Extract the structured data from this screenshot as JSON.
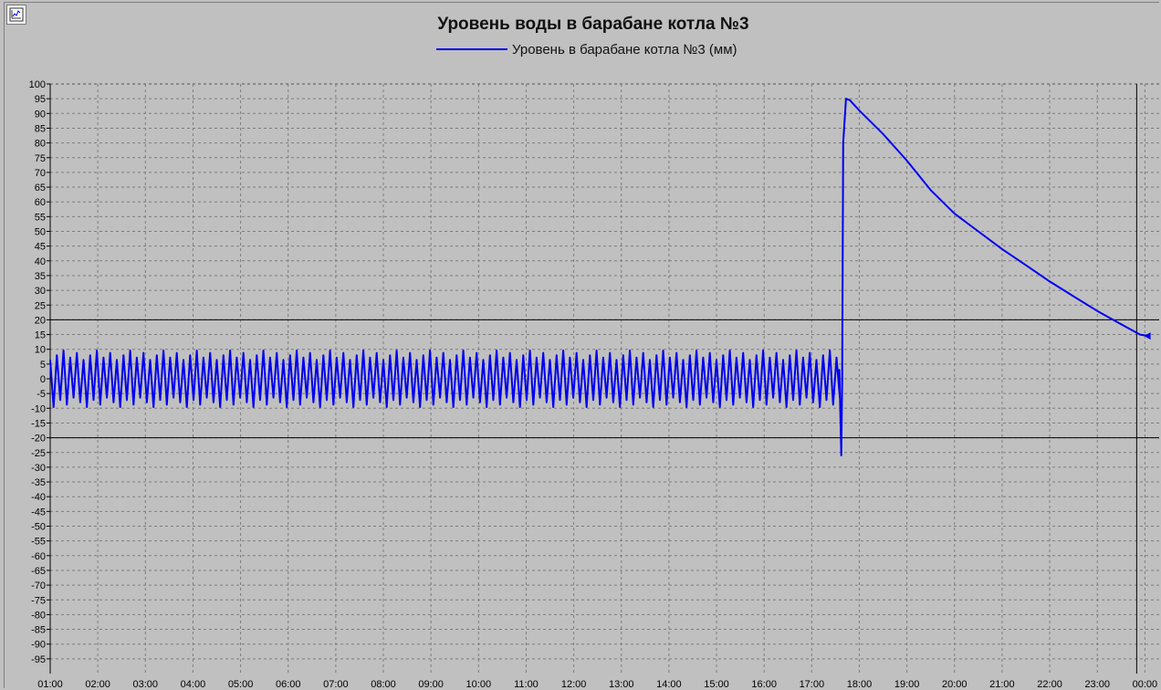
{
  "toolbar": {
    "settings_icon": "chart-settings-icon"
  },
  "chart_data": {
    "type": "line",
    "title": "Уровень воды в барабане котла №3",
    "xlabel": "",
    "ylabel": "",
    "ylim": [
      -100,
      100
    ],
    "y_ticks": [
      100,
      95,
      90,
      85,
      80,
      75,
      70,
      65,
      60,
      55,
      50,
      45,
      40,
      35,
      30,
      25,
      20,
      15,
      10,
      5,
      0,
      -5,
      -10,
      -15,
      -20,
      -25,
      -30,
      -35,
      -40,
      -45,
      -50,
      -55,
      -60,
      -65,
      -70,
      -75,
      -80,
      -85,
      -90,
      -95
    ],
    "x_ticks": [
      "01:00",
      "02:00",
      "03:00",
      "04:00",
      "05:00",
      "06:00",
      "07:00",
      "08:00",
      "09:00",
      "10:00",
      "11:00",
      "12:00",
      "13:00",
      "14:00",
      "15:00",
      "16:00",
      "17:00",
      "18:00",
      "19:00",
      "20:00",
      "21:00",
      "22:00",
      "23:00",
      "00:00"
    ],
    "xlim_hours": [
      1,
      24.3
    ],
    "grid": true,
    "legend_position": "top-center",
    "limit_lines": [
      20,
      -20
    ],
    "cursor_hour": 24,
    "series": [
      {
        "name": "Уровень в барабане котла №3 (мм)",
        "color": "#0000ee",
        "oscillation": {
          "from_hour": 1.0,
          "to_hour": 17.55,
          "period_hours": 0.14,
          "max": 10,
          "min": -10,
          "center": 0
        },
        "points": [
          [
            17.58,
            3
          ],
          [
            17.62,
            -26
          ],
          [
            17.64,
            0
          ],
          [
            17.66,
            80
          ],
          [
            17.72,
            95
          ],
          [
            17.8,
            94.5
          ],
          [
            18.0,
            91
          ],
          [
            18.5,
            83
          ],
          [
            19.0,
            74
          ],
          [
            19.5,
            64
          ],
          [
            20.0,
            56
          ],
          [
            20.5,
            50
          ],
          [
            21.0,
            44
          ],
          [
            21.5,
            38.5
          ],
          [
            22.0,
            33
          ],
          [
            22.5,
            28
          ],
          [
            23.0,
            23
          ],
          [
            23.5,
            18.5
          ],
          [
            23.9,
            15
          ],
          [
            24.1,
            14.5
          ]
        ]
      }
    ]
  }
}
